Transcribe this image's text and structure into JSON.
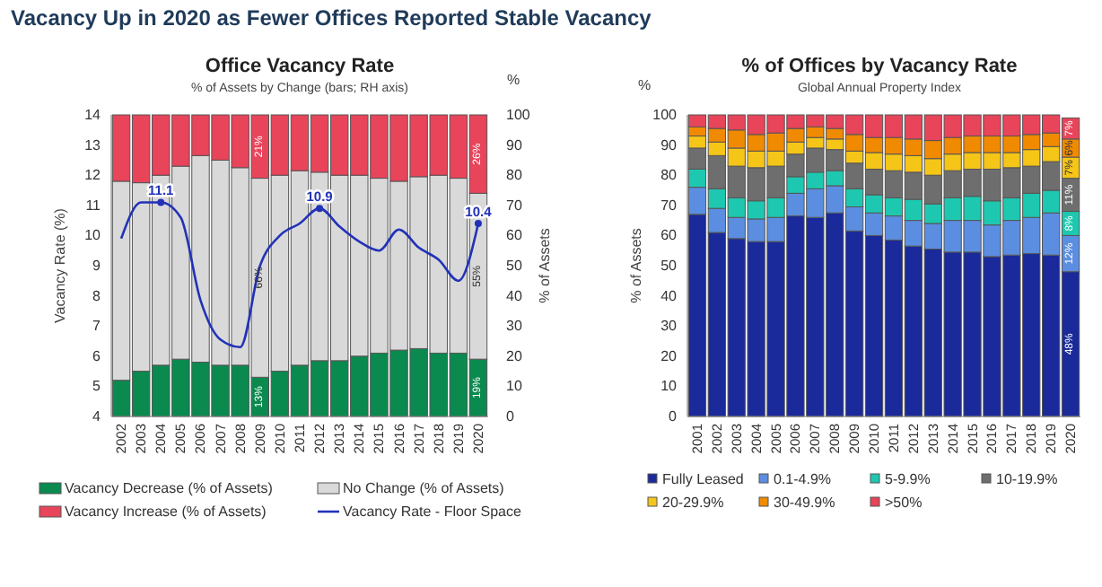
{
  "chart_data": [
    {
      "type": "bar",
      "title": "Office Vacancy Rate",
      "subtitle": "% of Assets by Change (bars; RH axis)",
      "ylabel": "Vacancy Rate (%)",
      "y2label": "% of Assets",
      "annotations": [
        "Vacancy Up in 2020 as Fewer Offices Reported Stable Vacancy",
        "%"
      ],
      "stacked": true,
      "legend": "bottom",
      "categories": [
        "2002",
        "2003",
        "2004",
        "2005",
        "2006",
        "2007",
        "2008",
        "2009",
        "2010",
        "2011",
        "2012",
        "2013",
        "2014",
        "2015",
        "2016",
        "2017",
        "2018",
        "2019",
        "2020"
      ],
      "ylim": [
        4,
        14
      ],
      "yticks": [
        4,
        5,
        6,
        7,
        8,
        9,
        10,
        11,
        12,
        13,
        14
      ],
      "y2lim": [
        0,
        100
      ],
      "y2ticks": [
        0,
        10,
        20,
        30,
        40,
        50,
        60,
        70,
        80,
        90,
        100
      ],
      "series": [
        {
          "name": "Vacancy Decrease (% of Assets)",
          "color": "#0a8a4f",
          "axis": "y2",
          "values": [
            12,
            15,
            17,
            19,
            18,
            17,
            17,
            13,
            15,
            17,
            18.5,
            18.5,
            20,
            21,
            22,
            22.5,
            21,
            21,
            19
          ],
          "value_labels": [
            null,
            null,
            null,
            null,
            null,
            null,
            null,
            "13%",
            null,
            null,
            null,
            null,
            null,
            null,
            null,
            null,
            null,
            null,
            "19%"
          ]
        },
        {
          "name": "No Change (% of Assets)",
          "color": "#d9d9d9",
          "axis": "y2",
          "values": [
            66,
            62.5,
            63,
            64,
            68.5,
            68,
            65.5,
            66,
            65,
            64.5,
            62.5,
            61.5,
            60,
            58,
            56,
            57,
            59,
            58,
            55
          ],
          "value_labels": [
            null,
            null,
            null,
            null,
            null,
            null,
            null,
            "66%",
            null,
            null,
            null,
            null,
            null,
            null,
            null,
            null,
            null,
            null,
            "55%"
          ]
        },
        {
          "name": "Vacancy Increase (% of Assets)",
          "color": "#e8445a",
          "axis": "y2",
          "values": [
            22,
            22.5,
            20,
            17,
            13.5,
            15,
            17.5,
            21,
            20,
            18.5,
            19,
            20,
            20,
            21,
            22,
            20.5,
            20,
            21,
            26
          ],
          "value_labels": [
            null,
            null,
            null,
            null,
            null,
            null,
            null,
            "21%",
            null,
            null,
            null,
            null,
            null,
            null,
            null,
            null,
            null,
            null,
            "26%"
          ]
        },
        {
          "name": "Vacancy Rate - Floor Space",
          "type": "line",
          "color": "#2232b8",
          "axis": "y",
          "values": [
            9.9,
            11.1,
            11.1,
            10.6,
            7.85,
            6.55,
            6.3,
            9.0,
            10.0,
            10.4,
            10.9,
            10.3,
            9.8,
            9.5,
            10.2,
            9.6,
            9.2,
            8.5,
            10.4
          ],
          "value_labels": [
            null,
            null,
            "11.1",
            null,
            null,
            null,
            null,
            null,
            null,
            null,
            "10.9",
            null,
            null,
            null,
            null,
            null,
            null,
            null,
            "10.4"
          ]
        }
      ]
    },
    {
      "type": "bar",
      "title": "% of Offices by Vacancy Rate",
      "subtitle": "Global Annual Property Index",
      "ylabel": "% of Assets",
      "annotations": [
        "%"
      ],
      "stacked": true,
      "legend": "bottom",
      "categories": [
        "2001",
        "2002",
        "2003",
        "2004",
        "2005",
        "2006",
        "2007",
        "2008",
        "2009",
        "2010",
        "2011",
        "2012",
        "2013",
        "2014",
        "2015",
        "2016",
        "2017",
        "2018",
        "2019",
        "2020"
      ],
      "ylim": [
        0,
        100
      ],
      "yticks": [
        0,
        10,
        20,
        30,
        40,
        50,
        60,
        70,
        80,
        90,
        100
      ],
      "series": [
        {
          "name": "Fully Leased",
          "color": "#1a2a9a",
          "values": [
            67,
            61,
            59,
            58,
            58,
            66.5,
            66,
            67.5,
            61.5,
            60,
            58.5,
            56.5,
            55.5,
            54.5,
            54.5,
            53,
            53.5,
            54,
            53.5,
            48
          ],
          "value_labels": [
            null,
            null,
            null,
            null,
            null,
            null,
            null,
            null,
            null,
            null,
            null,
            null,
            null,
            null,
            null,
            null,
            null,
            null,
            null,
            "48%"
          ]
        },
        {
          "name": "0.1-4.9%",
          "color": "#5b8ee0",
          "values": [
            9,
            8,
            7,
            7.5,
            8,
            7.5,
            9.5,
            9,
            8,
            7.5,
            8,
            8.5,
            8.5,
            10.5,
            10.5,
            10.5,
            11.5,
            12,
            14,
            12
          ],
          "value_labels": [
            null,
            null,
            null,
            null,
            null,
            null,
            null,
            null,
            null,
            null,
            null,
            null,
            null,
            null,
            null,
            null,
            null,
            null,
            null,
            "12%"
          ]
        },
        {
          "name": "5-9.9%",
          "color": "#1ec8b0",
          "values": [
            6,
            6.5,
            6.5,
            6,
            6.5,
            5.5,
            5.5,
            5,
            6,
            6,
            6,
            7,
            6.5,
            7.5,
            8,
            8,
            7.5,
            8,
            7.5,
            8
          ],
          "value_labels": [
            null,
            null,
            null,
            null,
            null,
            null,
            null,
            null,
            null,
            null,
            null,
            null,
            null,
            null,
            null,
            null,
            null,
            null,
            null,
            "8%"
          ]
        },
        {
          "name": "10-19.9%",
          "color": "#6e6e6e",
          "values": [
            7,
            11,
            10.5,
            11,
            10.5,
            7.5,
            8,
            7,
            8.5,
            8.5,
            9,
            9,
            9.5,
            9,
            9,
            10.5,
            10,
            9,
            9.5,
            11
          ],
          "value_labels": [
            null,
            null,
            null,
            null,
            null,
            null,
            null,
            null,
            null,
            null,
            null,
            null,
            null,
            null,
            null,
            null,
            null,
            null,
            null,
            "11%"
          ]
        },
        {
          "name": "20-29.9%",
          "color": "#f5c518",
          "values": [
            4,
            4.5,
            6,
            5.5,
            5,
            4,
            3.5,
            3.5,
            4,
            5.5,
            5.5,
            5.5,
            5.5,
            5.5,
            5.5,
            5.5,
            5,
            5.5,
            5,
            7
          ],
          "value_labels": [
            null,
            null,
            null,
            null,
            null,
            null,
            null,
            null,
            null,
            null,
            null,
            null,
            null,
            null,
            null,
            null,
            null,
            null,
            null,
            "7%"
          ]
        },
        {
          "name": "30-49.9%",
          "color": "#f08a00",
          "values": [
            3,
            4.5,
            6,
            5.5,
            6,
            4.5,
            3.5,
            3.5,
            5.5,
            5,
            5.5,
            5.5,
            6,
            5.5,
            5.5,
            5.5,
            5.5,
            5,
            4.5,
            6
          ],
          "value_labels": [
            null,
            null,
            null,
            null,
            null,
            null,
            null,
            null,
            null,
            null,
            null,
            null,
            null,
            null,
            null,
            null,
            null,
            null,
            null,
            "6%"
          ]
        },
        {
          "name": ">50%",
          "color": "#e8445a",
          "values": [
            4,
            4.5,
            5,
            6.5,
            6,
            4.5,
            4,
            4.5,
            6.5,
            7.5,
            7.5,
            8,
            8.5,
            7.5,
            7,
            7,
            7,
            6.5,
            6,
            7
          ],
          "value_labels": [
            null,
            null,
            null,
            null,
            null,
            null,
            null,
            null,
            null,
            null,
            null,
            null,
            null,
            null,
            null,
            null,
            null,
            null,
            null,
            "7%"
          ]
        }
      ]
    }
  ]
}
